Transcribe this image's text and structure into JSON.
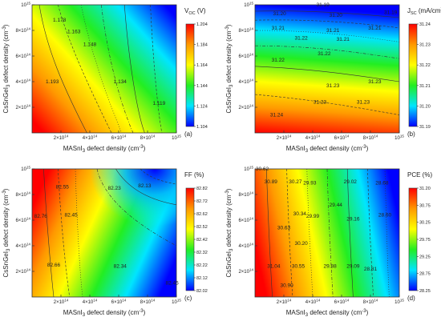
{
  "figure": {
    "panels": [
      {
        "id": "a",
        "panel_label": "(a)",
        "cbar_title": "V",
        "cbar_title_sub": "OC",
        "cbar_title_unit": " (V)",
        "xlabel_main": "MASnI",
        "xlabel_sub": "3",
        "xlabel_rest": " defect density (cm",
        "xlabel_sup": "-3",
        "xlabel_end": ")",
        "ylabel_main": "CsSnGeI",
        "ylabel_sub": "3",
        "ylabel_rest": " defect density (cm",
        "ylabel_sup": "-3",
        "ylabel_end": ")",
        "xticks": [
          {
            "v": 200000000000000,
            "m": "2×10",
            "e": "14"
          },
          {
            "v": 400000000000000,
            "m": "4×10",
            "e": "14"
          },
          {
            "v": 600000000000000,
            "m": "6×10",
            "e": "14"
          },
          {
            "v": 800000000000000,
            "m": "8×10",
            "e": "14"
          },
          {
            "v": 1000000000000000,
            "m": "10",
            "e": "15"
          }
        ],
        "yticks": [
          {
            "v": 200000000000000,
            "m": "2×10",
            "e": "14"
          },
          {
            "v": 400000000000000,
            "m": "4×10",
            "e": "14"
          },
          {
            "v": 600000000000000,
            "m": "6×10",
            "e": "14"
          },
          {
            "v": 800000000000000,
            "m": "8×10",
            "e": "14"
          },
          {
            "v": 1000000000000000,
            "m": "10",
            "e": "15"
          }
        ],
        "cbar_ticks": [
          "1.204",
          "1.184",
          "1.164",
          "1.144",
          "1.124",
          "1.104"
        ],
        "contour_labels": [
          {
            "text": "1.178",
            "x": 190000000000000,
            "y": 880000000000000
          },
          {
            "text": "1.163",
            "x": 290000000000000,
            "y": 790000000000000
          },
          {
            "text": "1.148",
            "x": 400000000000000,
            "y": 690000000000000
          },
          {
            "text": "1.193",
            "x": 140000000000000,
            "y": 400000000000000
          },
          {
            "text": "1.134",
            "x": 610000000000000,
            "y": 400000000000000
          },
          {
            "text": "1.119",
            "x": 880000000000000,
            "y": 230000000000000
          }
        ]
      },
      {
        "id": "b",
        "panel_label": "(b)",
        "cbar_title": "J",
        "cbar_title_sub": "SC",
        "cbar_title_unit": " (mA/cm",
        "cbar_title_sup": "2",
        "cbar_title_end": ")",
        "xlabel_main": "MASnI",
        "xlabel_sub": "3",
        "xlabel_rest": " defect density (cm",
        "xlabel_sup": "-3",
        "xlabel_end": ")",
        "ylabel_main": "CsSnGeI",
        "ylabel_sub": "3",
        "ylabel_rest": " defect density (cm",
        "ylabel_sup": "-3",
        "ylabel_end": ")",
        "xticks": [
          {
            "v": 200000000000000,
            "m": "2×10",
            "e": "14"
          },
          {
            "v": 400000000000000,
            "m": "4×10",
            "e": "14"
          },
          {
            "v": 600000000000000,
            "m": "6×10",
            "e": "14"
          },
          {
            "v": 800000000000000,
            "m": "8×10",
            "e": "14"
          },
          {
            "v": 1000000000000000,
            "m": "10",
            "e": "15"
          }
        ],
        "yticks": [
          {
            "v": 200000000000000,
            "m": "2×10",
            "e": "14"
          },
          {
            "v": 400000000000000,
            "m": "4×10",
            "e": "14"
          },
          {
            "v": 600000000000000,
            "m": "6×10",
            "e": "14"
          },
          {
            "v": 800000000000000,
            "m": "8×10",
            "e": "14"
          },
          {
            "v": 1000000000000000,
            "m": "10",
            "e": "15"
          }
        ],
        "cbar_ticks": [
          "31.24",
          "31.23",
          "31.22",
          "31.21",
          "31.20",
          "31.19"
        ],
        "contour_labels": [
          {
            "text": "31.19",
            "x": 470000000000000,
            "y": 1000000000000000
          },
          {
            "text": "31.20",
            "x": 170000000000000,
            "y": 930000000000000
          },
          {
            "text": "31.20",
            "x": 560000000000000,
            "y": 920000000000000
          },
          {
            "text": "31.19",
            "x": 940000000000000,
            "y": 940000000000000
          },
          {
            "text": "31.21",
            "x": 160000000000000,
            "y": 820000000000000
          },
          {
            "text": "31.21",
            "x": 540000000000000,
            "y": 800000000000000
          },
          {
            "text": "31.21",
            "x": 830000000000000,
            "y": 820000000000000
          },
          {
            "text": "31.22",
            "x": 320000000000000,
            "y": 740000000000000
          },
          {
            "text": "31.21",
            "x": 610000000000000,
            "y": 730000000000000
          },
          {
            "text": "31.22",
            "x": 480000000000000,
            "y": 620000000000000
          },
          {
            "text": "31.22",
            "x": 160000000000000,
            "y": 570000000000000
          },
          {
            "text": "31.23",
            "x": 540000000000000,
            "y": 370000000000000
          },
          {
            "text": "31.23",
            "x": 830000000000000,
            "y": 400000000000000
          },
          {
            "text": "31.23",
            "x": 450000000000000,
            "y": 240000000000000
          },
          {
            "text": "31.23",
            "x": 750000000000000,
            "y": 240000000000000
          },
          {
            "text": "31.24",
            "x": 150000000000000,
            "y": 140000000000000
          }
        ]
      },
      {
        "id": "c",
        "panel_label": "(c)",
        "cbar_title": "FF (%)",
        "xlabel_main": "MASnI",
        "xlabel_sub": "3",
        "xlabel_rest": " defect density (cm",
        "xlabel_sup": "-3",
        "xlabel_end": ")",
        "ylabel_main": "CsSnGeI",
        "ylabel_sub": "3",
        "ylabel_rest": " defect density (cm",
        "ylabel_sup": "-3",
        "ylabel_end": ")",
        "xticks": [
          {
            "v": 200000000000000,
            "m": "2×10",
            "e": "14"
          },
          {
            "v": 400000000000000,
            "m": "4×10",
            "e": "14"
          },
          {
            "v": 600000000000000,
            "m": "6×10",
            "e": "14"
          },
          {
            "v": 800000000000000,
            "m": "8×10",
            "e": "14"
          },
          {
            "v": 1000000000000000,
            "m": "10",
            "e": "15"
          }
        ],
        "yticks": [
          {
            "v": 200000000000000,
            "m": "2×10",
            "e": "14"
          },
          {
            "v": 400000000000000,
            "m": "4×10",
            "e": "14"
          },
          {
            "v": 600000000000000,
            "m": "6×10",
            "e": "14"
          },
          {
            "v": 800000000000000,
            "m": "8×10",
            "e": "14"
          },
          {
            "v": 1000000000000000,
            "m": "10",
            "e": "15"
          }
        ],
        "cbar_ticks": [
          "82.82",
          "82.72",
          "82.62",
          "82.52",
          "82.42",
          "82.32",
          "82.22",
          "82.12",
          "82.02"
        ],
        "contour_labels": [
          {
            "text": "82.55",
            "x": 210000000000000,
            "y": 860000000000000
          },
          {
            "text": "82.23",
            "x": 570000000000000,
            "y": 850000000000000
          },
          {
            "text": "82.13",
            "x": 780000000000000,
            "y": 870000000000000
          },
          {
            "text": "82.76",
            "x": 60000000000000,
            "y": 630000000000000
          },
          {
            "text": "82.45",
            "x": 270000000000000,
            "y": 640000000000000
          },
          {
            "text": "82.66",
            "x": 150000000000000,
            "y": 250000000000000
          },
          {
            "text": "82.34",
            "x": 610000000000000,
            "y": 240000000000000
          },
          {
            "text": "82.45",
            "x": 970000000000000,
            "y": 110000000000000
          }
        ]
      },
      {
        "id": "d",
        "panel_label": "(d)",
        "cbar_title": "PCE (%)",
        "xlabel_main": "MASnI",
        "xlabel_sub": "3",
        "xlabel_rest": " defect density (cm",
        "xlabel_sup": "-3",
        "xlabel_end": ")",
        "ylabel_main": "CsSnGeI",
        "ylabel_sub": "3",
        "ylabel_rest": " defect density (cm",
        "ylabel_sup": "-3",
        "ylabel_end": ")",
        "xticks": [
          {
            "v": 200000000000000,
            "m": "2×10",
            "e": "14"
          },
          {
            "v": 400000000000000,
            "m": "4×10",
            "e": "14"
          },
          {
            "v": 600000000000000,
            "m": "6×10",
            "e": "14"
          },
          {
            "v": 800000000000000,
            "m": "8×10",
            "e": "14"
          },
          {
            "v": 1000000000000000,
            "m": "10",
            "e": "15"
          }
        ],
        "yticks": [
          {
            "v": 200000000000000,
            "m": "2×10",
            "e": "14"
          },
          {
            "v": 400000000000000,
            "m": "4×10",
            "e": "14"
          },
          {
            "v": 600000000000000,
            "m": "6×10",
            "e": "14"
          },
          {
            "v": 800000000000000,
            "m": "8×10",
            "e": "14"
          },
          {
            "v": 1000000000000000,
            "m": "10",
            "e": "15"
          }
        ],
        "cbar_ticks": [
          "31.20",
          "30.75",
          "30.25",
          "29.75",
          "29.25",
          "28.75",
          "28.25"
        ],
        "contour_labels": [
          {
            "text": "30.62",
            "x": 50000000000000,
            "y": 1000000000000000
          },
          {
            "text": "30.89",
            "x": 110000000000000,
            "y": 900000000000000
          },
          {
            "text": "30.27",
            "x": 280000000000000,
            "y": 900000000000000
          },
          {
            "text": "29.93",
            "x": 380000000000000,
            "y": 890000000000000
          },
          {
            "text": "29.02",
            "x": 660000000000000,
            "y": 900000000000000
          },
          {
            "text": "28.68",
            "x": 880000000000000,
            "y": 890000000000000
          },
          {
            "text": "29.44",
            "x": 560000000000000,
            "y": 720000000000000
          },
          {
            "text": "30.34",
            "x": 310000000000000,
            "y": 650000000000000
          },
          {
            "text": "29.99",
            "x": 400000000000000,
            "y": 630000000000000
          },
          {
            "text": "29.16",
            "x": 680000000000000,
            "y": 610000000000000
          },
          {
            "text": "28.60",
            "x": 900000000000000,
            "y": 640000000000000
          },
          {
            "text": "30.63",
            "x": 200000000000000,
            "y": 540000000000000
          },
          {
            "text": "30.20",
            "x": 320000000000000,
            "y": 420000000000000
          },
          {
            "text": "31.04",
            "x": 130000000000000,
            "y": 240000000000000
          },
          {
            "text": "30.55",
            "x": 300000000000000,
            "y": 240000000000000
          },
          {
            "text": "29.88",
            "x": 520000000000000,
            "y": 240000000000000
          },
          {
            "text": "29.09",
            "x": 680000000000000,
            "y": 240000000000000
          },
          {
            "text": "28.81",
            "x": 800000000000000,
            "y": 220000000000000
          },
          {
            "text": "30.90",
            "x": 220000000000000,
            "y": 90000000000000
          }
        ]
      }
    ]
  },
  "chart_data": [
    {
      "type": "heatmap",
      "panel": "(a)",
      "quantity": "V_OC (V)",
      "xlabel": "MASnI3 defect density (cm-3)",
      "ylabel": "CsSnGeI3 defect density (cm-3)",
      "xlim": [
        0,
        1000000000000000.0
      ],
      "ylim": [
        0,
        1000000000000000.0
      ],
      "zlim": [
        1.104,
        1.204
      ],
      "x_ticks": [
        200000000000000.0,
        400000000000000.0,
        600000000000000.0,
        800000000000000.0,
        1000000000000000.0
      ],
      "y_ticks": [
        200000000000000.0,
        400000000000000.0,
        600000000000000.0,
        800000000000000.0,
        1000000000000000.0
      ],
      "contour_values": [
        1.193,
        1.178,
        1.163,
        1.148,
        1.134,
        1.119
      ],
      "colormap": [
        "#ff0000",
        "#ffa500",
        "#ffff00",
        "#00ff00",
        "#00ffff",
        "#0000ff"
      ]
    },
    {
      "type": "heatmap",
      "panel": "(b)",
      "quantity": "J_SC (mA/cm2)",
      "xlabel": "MASnI3 defect density (cm-3)",
      "ylabel": "CsSnGeI3 defect density (cm-3)",
      "xlim": [
        0,
        1000000000000000.0
      ],
      "ylim": [
        0,
        1000000000000000.0
      ],
      "zlim": [
        31.19,
        31.24
      ],
      "x_ticks": [
        200000000000000.0,
        400000000000000.0,
        600000000000000.0,
        800000000000000.0,
        1000000000000000.0
      ],
      "y_ticks": [
        200000000000000.0,
        400000000000000.0,
        600000000000000.0,
        800000000000000.0,
        1000000000000000.0
      ],
      "contour_values": [
        31.24,
        31.23,
        31.22,
        31.21,
        31.2,
        31.19
      ],
      "colormap": [
        "#ff0000",
        "#ffa500",
        "#ffff00",
        "#00ff00",
        "#00ffff",
        "#0000ff"
      ]
    },
    {
      "type": "heatmap",
      "panel": "(c)",
      "quantity": "FF (%)",
      "xlabel": "MASnI3 defect density (cm-3)",
      "ylabel": "CsSnGeI3 defect density (cm-3)",
      "xlim": [
        0,
        1000000000000000.0
      ],
      "ylim": [
        0,
        1000000000000000.0
      ],
      "zlim": [
        82.02,
        82.82
      ],
      "x_ticks": [
        200000000000000.0,
        400000000000000.0,
        600000000000000.0,
        800000000000000.0,
        1000000000000000.0
      ],
      "y_ticks": [
        200000000000000.0,
        400000000000000.0,
        600000000000000.0,
        800000000000000.0,
        1000000000000000.0
      ],
      "contour_values": [
        82.76,
        82.66,
        82.55,
        82.45,
        82.34,
        82.23,
        82.13
      ],
      "colormap": [
        "#ff0000",
        "#ffa500",
        "#ffff00",
        "#00ff00",
        "#00ffff",
        "#0000ff"
      ]
    },
    {
      "type": "heatmap",
      "panel": "(d)",
      "quantity": "PCE (%)",
      "xlabel": "MASnI3 defect density (cm-3)",
      "ylabel": "CsSnGeI3 defect density (cm-3)",
      "xlim": [
        0,
        1000000000000000.0
      ],
      "ylim": [
        0,
        1000000000000000.0
      ],
      "zlim": [
        28.25,
        31.2
      ],
      "x_ticks": [
        200000000000000.0,
        400000000000000.0,
        600000000000000.0,
        800000000000000.0,
        1000000000000000.0
      ],
      "y_ticks": [
        200000000000000.0,
        400000000000000.0,
        600000000000000.0,
        800000000000000.0,
        1000000000000000.0
      ],
      "contour_values": [
        31.04,
        30.9,
        30.89,
        30.63,
        30.62,
        30.55,
        30.34,
        30.27,
        30.2,
        29.99,
        29.93,
        29.88,
        29.44,
        29.16,
        29.09,
        29.02,
        28.81,
        28.68,
        28.6
      ],
      "colormap": [
        "#ff0000",
        "#ffa500",
        "#ffff00",
        "#00ff00",
        "#00ffff",
        "#0000ff"
      ]
    }
  ]
}
